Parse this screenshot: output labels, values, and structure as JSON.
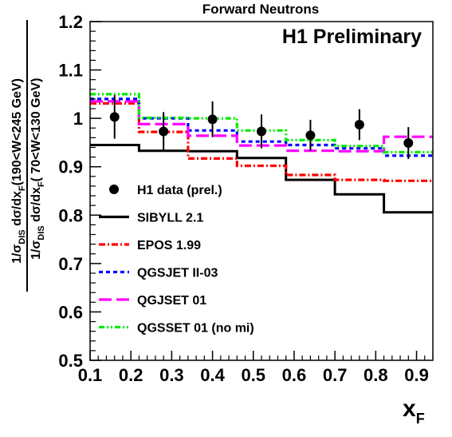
{
  "chart_data": {
    "type": "line",
    "title": "Forward Neutrons",
    "annotation": "H1 Preliminary",
    "xlabel": {
      "main": "x",
      "sub": "F"
    },
    "ylabel": {
      "numerator": {
        "prefix": "1/σ",
        "prefix_sub": "DIS",
        "mid": " dσ/dx",
        "mid_sub": "F",
        "rest": "(190<W<245 GeV)"
      },
      "denominator": {
        "prefix": "1/σ",
        "prefix_sub": "DIS",
        "mid": " dσ/dx",
        "mid_sub": "F",
        "rest": "( 70<W<130 GeV)"
      }
    },
    "xlim": [
      0.1,
      0.94
    ],
    "ylim": [
      0.5,
      1.2
    ],
    "xticks": [
      "0.1",
      "0.2",
      "0.3",
      "0.4",
      "0.5",
      "0.6",
      "0.7",
      "0.8",
      "0.9"
    ],
    "yticks": [
      "0.5",
      "0.6",
      "0.7",
      "0.8",
      "0.9",
      "1",
      "1.1",
      "1.2"
    ],
    "bin_edges": [
      0.1,
      0.22,
      0.34,
      0.46,
      0.58,
      0.7,
      0.82,
      0.94
    ],
    "data": {
      "name": "H1 data (prel.)",
      "x": [
        0.16,
        0.28,
        0.4,
        0.52,
        0.64,
        0.76,
        0.88
      ],
      "y": [
        1.003,
        0.973,
        0.998,
        0.973,
        0.965,
        0.987,
        0.949
      ],
      "err": [
        0.045,
        0.04,
        0.037,
        0.035,
        0.032,
        0.032,
        0.033
      ]
    },
    "series": [
      {
        "name": "SIBYLL 2.1",
        "values": [
          0.945,
          0.933,
          0.932,
          0.918,
          0.873,
          0.843,
          0.806
        ],
        "color": "#000000",
        "dash": "solid"
      },
      {
        "name": "EPOS 1.99",
        "values": [
          1.031,
          0.972,
          0.917,
          0.902,
          0.883,
          0.873,
          0.871
        ],
        "color": "#ff0000",
        "dash": "dashdot"
      },
      {
        "name": "QGSJET II-03",
        "values": [
          1.04,
          1.0,
          0.975,
          0.952,
          0.945,
          0.938,
          0.923
        ],
        "color": "#0000ff",
        "dash": "dot"
      },
      {
        "name": "QGJSET 01",
        "values": [
          1.035,
          0.988,
          0.964,
          0.944,
          0.933,
          0.932,
          0.962
        ],
        "color": "#ff00ff",
        "dash": "longdash"
      },
      {
        "name": "QGSSET 01 (no mi)",
        "values": [
          1.05,
          1.001,
          1.0,
          0.975,
          0.955,
          0.943,
          0.93
        ],
        "color": "#00ee00",
        "dash": "dashdotdot"
      }
    ],
    "grid": false,
    "legend_position": "left-center"
  }
}
